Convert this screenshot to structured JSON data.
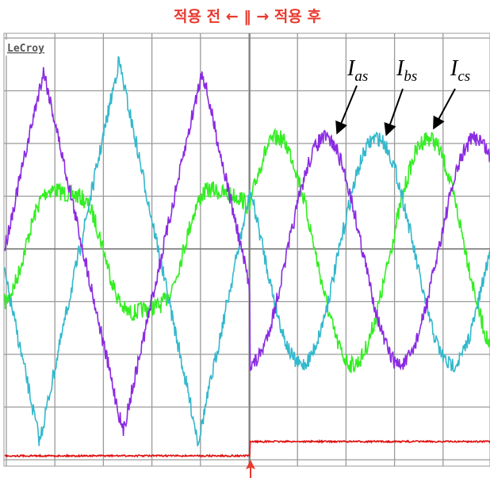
{
  "header": {
    "title": "적용 전 ← ‖ → 적용 후"
  },
  "scope": {
    "brand": "LeCroy"
  },
  "labels": [
    {
      "main": "I",
      "sub": "as"
    },
    {
      "main": "I",
      "sub": "bs"
    },
    {
      "main": "I",
      "sub": "cs"
    }
  ]
}
